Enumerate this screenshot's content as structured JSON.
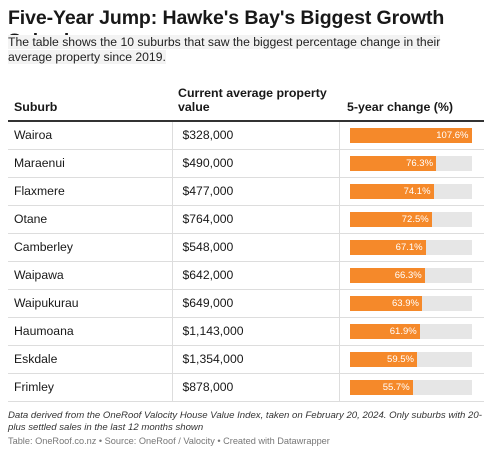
{
  "title": "Five-Year Jump: Hawke's Bay's Biggest Growth Suburbs",
  "subtitle": "The table shows the 10 suburbs that saw the biggest percentage change in their average property since 2019.",
  "columns": {
    "suburb": "Suburb",
    "price": "Current average property value",
    "change": "5-year change (%)"
  },
  "colors": {
    "bar": "#f5892a",
    "track": "#e6e6e6",
    "label": "#ffffff"
  },
  "chart_data": {
    "type": "table",
    "title": "Five-Year Jump: Hawke's Bay's Biggest Growth Suburbs",
    "columns": [
      "Suburb",
      "Current average property value",
      "5-year change (%)"
    ],
    "bar_column": "5-year change (%)",
    "bar_max": 107.6,
    "rows": [
      {
        "suburb": "Wairoa",
        "price": "$328,000",
        "change": 107.6,
        "change_label": "107.6%"
      },
      {
        "suburb": "Maraenui",
        "price": "$490,000",
        "change": 76.3,
        "change_label": "76.3%"
      },
      {
        "suburb": "Flaxmere",
        "price": "$477,000",
        "change": 74.1,
        "change_label": "74.1%"
      },
      {
        "suburb": "Otane",
        "price": "$764,000",
        "change": 72.5,
        "change_label": "72.5%"
      },
      {
        "suburb": "Camberley",
        "price": "$548,000",
        "change": 67.1,
        "change_label": "67.1%"
      },
      {
        "suburb": "Waipawa",
        "price": "$642,000",
        "change": 66.3,
        "change_label": "66.3%"
      },
      {
        "suburb": "Waipukurau",
        "price": "$649,000",
        "change": 63.9,
        "change_label": "63.9%"
      },
      {
        "suburb": "Haumoana",
        "price": "$1,143,000",
        "change": 61.9,
        "change_label": "61.9%"
      },
      {
        "suburb": "Eskdale",
        "price": "$1,354,000",
        "change": 59.5,
        "change_label": "59.5%"
      },
      {
        "suburb": "Frimley",
        "price": "$878,000",
        "change": 55.7,
        "change_label": "55.7%"
      }
    ]
  },
  "notes": "Data derived from the OneRoof Valocity House Value Index, taken on February 20, 2024. Only suburbs with 20-plus settled sales in the last 12 months shown",
  "source": "Table: OneRoof.co.nz • Source: OneRoof / Valocity • Created with Datawrapper"
}
